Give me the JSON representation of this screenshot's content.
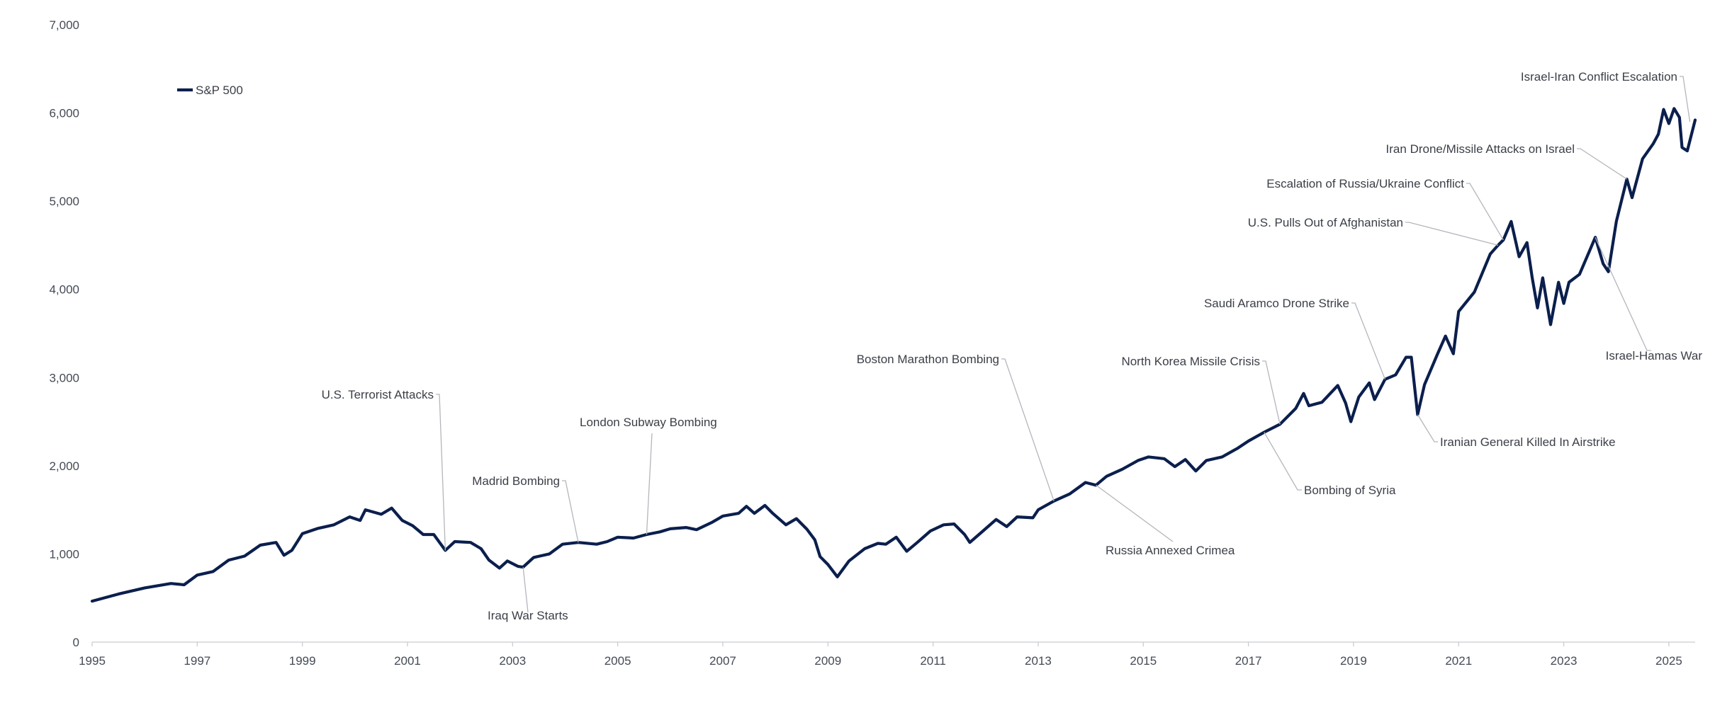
{
  "chart_data": {
    "type": "line",
    "title": "",
    "xlabel": "",
    "ylabel": "",
    "xlim": [
      1995,
      2025.5
    ],
    "ylim": [
      0,
      7000
    ],
    "grid": false,
    "legend_position": "top-left",
    "colors": {
      "line": "#0b1f4d",
      "axis": "#c9ccd1",
      "annotation_line": "#b3b6bc",
      "text": "#444a55"
    },
    "x_ticks": [
      {
        "value": 1995,
        "label": "1995"
      },
      {
        "value": 1997,
        "label": "1997"
      },
      {
        "value": 1999,
        "label": "1999"
      },
      {
        "value": 2001,
        "label": "2001"
      },
      {
        "value": 2003,
        "label": "2003"
      },
      {
        "value": 2005,
        "label": "2005"
      },
      {
        "value": 2007,
        "label": "2007"
      },
      {
        "value": 2009,
        "label": "2009"
      },
      {
        "value": 2011,
        "label": "2011"
      },
      {
        "value": 2013,
        "label": "2013"
      },
      {
        "value": 2015,
        "label": "2015"
      },
      {
        "value": 2017,
        "label": "2017"
      },
      {
        "value": 2019,
        "label": "2019"
      },
      {
        "value": 2021,
        "label": "2021"
      },
      {
        "value": 2023,
        "label": "2023"
      },
      {
        "value": 2025,
        "label": "2025"
      }
    ],
    "y_ticks": [
      {
        "value": 0,
        "label": "0"
      },
      {
        "value": 1000,
        "label": "1,000"
      },
      {
        "value": 2000,
        "label": "2,000"
      },
      {
        "value": 3000,
        "label": "3,000"
      },
      {
        "value": 4000,
        "label": "4,000"
      },
      {
        "value": 5000,
        "label": "5,000"
      },
      {
        "value": 6000,
        "label": "6,000"
      },
      {
        "value": 7000,
        "label": "7,000"
      }
    ],
    "series": [
      {
        "name": "S&P 500",
        "points": [
          [
            1995.0,
            465
          ],
          [
            1995.5,
            545
          ],
          [
            1996.0,
            615
          ],
          [
            1996.5,
            665
          ],
          [
            1996.75,
            650
          ],
          [
            1997.0,
            760
          ],
          [
            1997.3,
            800
          ],
          [
            1997.6,
            930
          ],
          [
            1997.9,
            975
          ],
          [
            1998.2,
            1100
          ],
          [
            1998.5,
            1130
          ],
          [
            1998.65,
            985
          ],
          [
            1998.8,
            1040
          ],
          [
            1999.0,
            1230
          ],
          [
            1999.3,
            1290
          ],
          [
            1999.6,
            1330
          ],
          [
            1999.9,
            1420
          ],
          [
            2000.1,
            1380
          ],
          [
            2000.2,
            1500
          ],
          [
            2000.5,
            1450
          ],
          [
            2000.7,
            1520
          ],
          [
            2000.9,
            1380
          ],
          [
            2001.1,
            1320
          ],
          [
            2001.3,
            1220
          ],
          [
            2001.5,
            1220
          ],
          [
            2001.72,
            1040
          ],
          [
            2001.9,
            1140
          ],
          [
            2002.2,
            1130
          ],
          [
            2002.4,
            1060
          ],
          [
            2002.55,
            930
          ],
          [
            2002.75,
            840
          ],
          [
            2002.9,
            920
          ],
          [
            2003.1,
            860
          ],
          [
            2003.2,
            850
          ],
          [
            2003.4,
            960
          ],
          [
            2003.7,
            1000
          ],
          [
            2003.95,
            1110
          ],
          [
            2004.25,
            1130
          ],
          [
            2004.6,
            1110
          ],
          [
            2004.8,
            1140
          ],
          [
            2005.0,
            1190
          ],
          [
            2005.3,
            1180
          ],
          [
            2005.55,
            1220
          ],
          [
            2005.8,
            1250
          ],
          [
            2006.0,
            1285
          ],
          [
            2006.3,
            1300
          ],
          [
            2006.5,
            1275
          ],
          [
            2006.8,
            1360
          ],
          [
            2007.0,
            1430
          ],
          [
            2007.3,
            1460
          ],
          [
            2007.45,
            1540
          ],
          [
            2007.6,
            1460
          ],
          [
            2007.8,
            1550
          ],
          [
            2007.95,
            1460
          ],
          [
            2008.2,
            1330
          ],
          [
            2008.4,
            1400
          ],
          [
            2008.6,
            1280
          ],
          [
            2008.75,
            1160
          ],
          [
            2008.85,
            970
          ],
          [
            2009.0,
            880
          ],
          [
            2009.18,
            740
          ],
          [
            2009.4,
            920
          ],
          [
            2009.7,
            1060
          ],
          [
            2009.95,
            1120
          ],
          [
            2010.1,
            1110
          ],
          [
            2010.3,
            1190
          ],
          [
            2010.5,
            1030
          ],
          [
            2010.7,
            1130
          ],
          [
            2010.95,
            1260
          ],
          [
            2011.2,
            1330
          ],
          [
            2011.4,
            1340
          ],
          [
            2011.6,
            1220
          ],
          [
            2011.7,
            1130
          ],
          [
            2011.95,
            1260
          ],
          [
            2012.2,
            1390
          ],
          [
            2012.4,
            1310
          ],
          [
            2012.6,
            1420
          ],
          [
            2012.9,
            1410
          ],
          [
            2013.0,
            1500
          ],
          [
            2013.3,
            1600
          ],
          [
            2013.6,
            1680
          ],
          [
            2013.9,
            1810
          ],
          [
            2014.1,
            1780
          ],
          [
            2014.3,
            1880
          ],
          [
            2014.6,
            1960
          ],
          [
            2014.9,
            2060
          ],
          [
            2015.1,
            2100
          ],
          [
            2015.4,
            2080
          ],
          [
            2015.6,
            1990
          ],
          [
            2015.8,
            2070
          ],
          [
            2016.0,
            1940
          ],
          [
            2016.2,
            2060
          ],
          [
            2016.5,
            2100
          ],
          [
            2016.8,
            2200
          ],
          [
            2017.0,
            2280
          ],
          [
            2017.3,
            2380
          ],
          [
            2017.6,
            2470
          ],
          [
            2017.9,
            2650
          ],
          [
            2018.05,
            2820
          ],
          [
            2018.15,
            2680
          ],
          [
            2018.4,
            2720
          ],
          [
            2018.7,
            2910
          ],
          [
            2018.85,
            2710
          ],
          [
            2018.95,
            2500
          ],
          [
            2019.1,
            2780
          ],
          [
            2019.3,
            2940
          ],
          [
            2019.4,
            2750
          ],
          [
            2019.6,
            2980
          ],
          [
            2019.8,
            3030
          ],
          [
            2020.0,
            3230
          ],
          [
            2020.1,
            3230
          ],
          [
            2020.22,
            2580
          ],
          [
            2020.35,
            2920
          ],
          [
            2020.6,
            3270
          ],
          [
            2020.75,
            3470
          ],
          [
            2020.9,
            3270
          ],
          [
            2021.0,
            3750
          ],
          [
            2021.3,
            3970
          ],
          [
            2021.6,
            4400
          ],
          [
            2021.75,
            4500
          ],
          [
            2021.85,
            4560
          ],
          [
            2022.0,
            4770
          ],
          [
            2022.15,
            4370
          ],
          [
            2022.3,
            4530
          ],
          [
            2022.4,
            4130
          ],
          [
            2022.5,
            3790
          ],
          [
            2022.6,
            4130
          ],
          [
            2022.75,
            3600
          ],
          [
            2022.9,
            4080
          ],
          [
            2023.0,
            3840
          ],
          [
            2023.1,
            4080
          ],
          [
            2023.3,
            4170
          ],
          [
            2023.5,
            4450
          ],
          [
            2023.6,
            4590
          ],
          [
            2023.75,
            4290
          ],
          [
            2023.85,
            4200
          ],
          [
            2024.0,
            4770
          ],
          [
            2024.2,
            5250
          ],
          [
            2024.3,
            5040
          ],
          [
            2024.5,
            5480
          ],
          [
            2024.7,
            5650
          ],
          [
            2024.8,
            5760
          ],
          [
            2024.9,
            6040
          ],
          [
            2025.0,
            5880
          ],
          [
            2025.1,
            6050
          ],
          [
            2025.2,
            5950
          ],
          [
            2025.25,
            5610
          ],
          [
            2025.35,
            5570
          ],
          [
            2025.5,
            5920
          ]
        ]
      }
    ],
    "annotations": [
      {
        "text": "U.S. Terrorist Attacks"
      },
      {
        "text": "Iraq War Starts"
      },
      {
        "text": "Madrid Bombing"
      },
      {
        "text": "London Subway Bombing"
      },
      {
        "text": "Boston Marathon Bombing"
      },
      {
        "text": "Russia Annexed Crimea"
      },
      {
        "text": "North Korea Missile Crisis"
      },
      {
        "text": "Bombing of Syria"
      },
      {
        "text": "Saudi Aramco Drone Strike"
      },
      {
        "text": "Iranian General Killed In Airstrike"
      },
      {
        "text": "U.S. Pulls Out of Afghanistan"
      },
      {
        "text": "Escalation of Russia/Ukraine Conflict"
      },
      {
        "text": "Israel-Hamas War"
      },
      {
        "text": "Iran Drone/Missile Attacks on Israel"
      },
      {
        "text": "Israel-Iran Conflict Escalation"
      }
    ]
  }
}
